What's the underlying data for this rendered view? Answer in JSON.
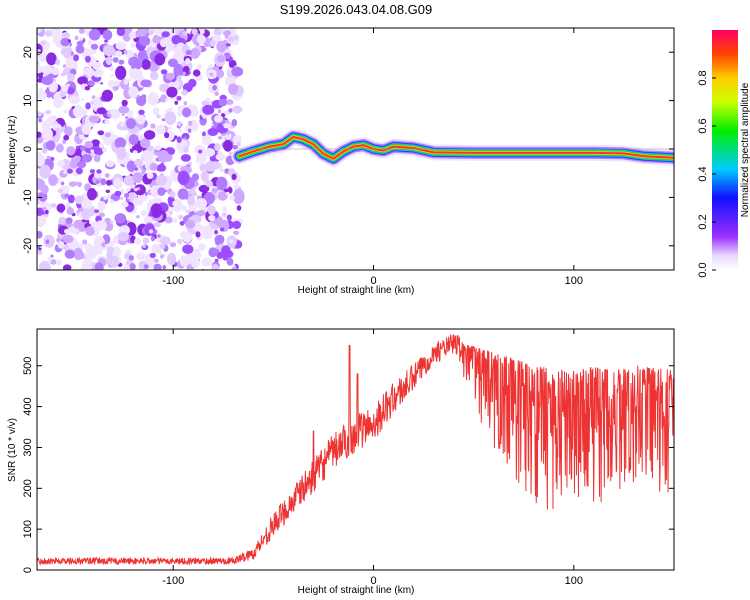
{
  "title": "S199.2026.043.04.08.G09",
  "chart_data": [
    {
      "type": "heatmap",
      "title": "S199.2026.043.04.08.G09",
      "xlabel": "Height of straight line (km)",
      "ylabel": "Frequency (Hz)",
      "xlim": [
        -168,
        150
      ],
      "ylim": [
        -25,
        25
      ],
      "xticks": [
        -100,
        0,
        100
      ],
      "yticks": [
        -20,
        -10,
        0,
        10,
        20
      ],
      "noise_region_xmax": -67,
      "ridge": {
        "x": [
          -67,
          -60,
          -52,
          -45,
          -40,
          -35,
          -30,
          -25,
          -20,
          -15,
          -10,
          -5,
          0,
          5,
          10,
          20,
          30,
          50,
          70,
          90,
          110,
          125,
          135,
          150
        ],
        "freq": [
          -1.5,
          -0.5,
          0.5,
          1.0,
          2.5,
          2.0,
          1.0,
          -1.0,
          -2.0,
          -0.5,
          0.5,
          0.8,
          0.0,
          -0.3,
          0.5,
          0.2,
          -0.7,
          -0.8,
          -0.8,
          -0.8,
          -0.8,
          -0.9,
          -1.5,
          -1.8
        ]
      },
      "colorbar": {
        "label": "Normalized spectral amplitude",
        "range": [
          0,
          1
        ],
        "ticks": [
          0.0,
          0.2,
          0.4,
          0.6,
          0.8
        ],
        "tick_labels": [
          "0.0",
          "0.2",
          "0.4",
          "0.6",
          "0.8"
        ]
      }
    },
    {
      "type": "line",
      "xlabel": "Height of straight line (km)",
      "ylabel": "SNR (10 * v/v)",
      "xlim": [
        -168,
        150
      ],
      "ylim": [
        0,
        590
      ],
      "xticks": [
        -100,
        0,
        100
      ],
      "yticks": [
        0,
        100,
        200,
        300,
        400,
        500
      ],
      "series": [
        {
          "name": "SNR",
          "color": "#ee3333",
          "x": [
            -168,
            -150,
            -130,
            -110,
            -90,
            -70,
            -60,
            -50,
            -40,
            -30,
            -20,
            -10,
            0,
            10,
            20,
            30,
            40,
            50,
            60,
            70,
            80,
            90,
            100,
            110,
            120,
            130,
            140,
            150
          ],
          "center": [
            22,
            22,
            22,
            22,
            22,
            22,
            40,
            110,
            170,
            230,
            290,
            330,
            360,
            420,
            470,
            530,
            555,
            520,
            480,
            450,
            430,
            420,
            420,
            430,
            420,
            440,
            430,
            430
          ],
          "spread": [
            8,
            8,
            8,
            8,
            8,
            8,
            15,
            30,
            35,
            40,
            45,
            45,
            45,
            40,
            35,
            25,
            25,
            60,
            120,
            150,
            160,
            160,
            150,
            150,
            150,
            140,
            140,
            140
          ],
          "spikes": [
            {
              "x": -12,
              "y": 550
            },
            {
              "x": -8,
              "y": 480
            },
            {
              "x": -30,
              "y": 340
            }
          ]
        }
      ]
    }
  ]
}
